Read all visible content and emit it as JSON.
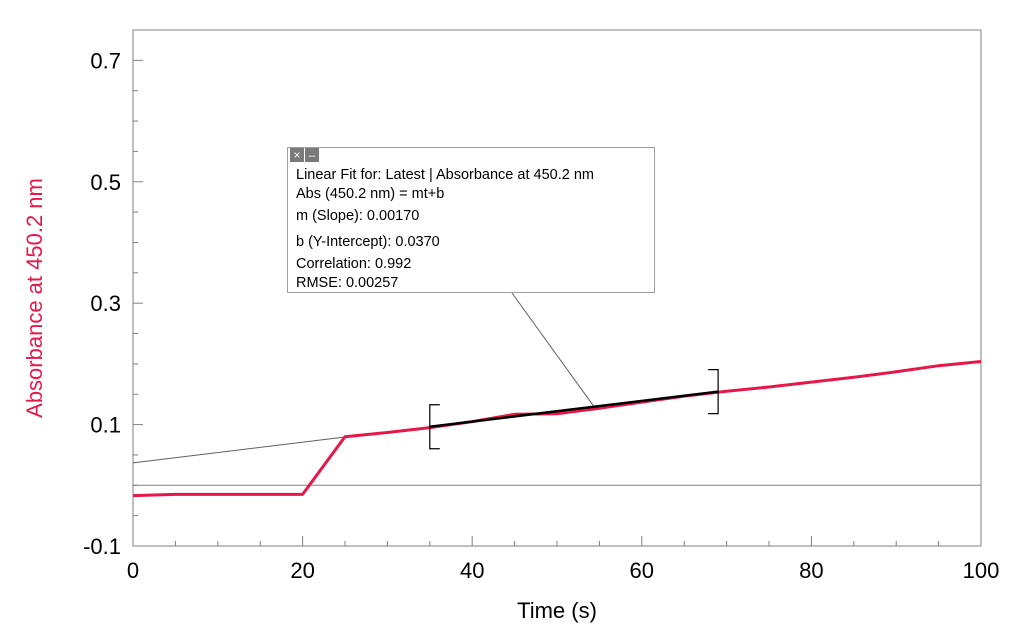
{
  "chart_data": {
    "type": "line",
    "xlabel": "Time (s)",
    "ylabel": "Absorbance at 450.2 nm",
    "xlim": [
      0,
      100
    ],
    "ylim": [
      -0.1,
      0.75
    ],
    "x_ticks": [
      0,
      20,
      40,
      60,
      80,
      100
    ],
    "y_ticks": [
      -0.1,
      0.1,
      0.3,
      0.5,
      0.7
    ],
    "x_tick_labels": [
      "0",
      "20",
      "40",
      "60",
      "80",
      "100"
    ],
    "y_tick_labels": [
      "-0.1",
      "0.1",
      "0.3",
      "0.5",
      "0.7"
    ],
    "grid": false,
    "colors": {
      "series": "#e8174a",
      "fit": "#000000",
      "ylabel": "#e8174a"
    },
    "series": [
      {
        "x": [
          0,
          5,
          10,
          15,
          20,
          25,
          30,
          35,
          40,
          45,
          50,
          55,
          60,
          65,
          70,
          75,
          80,
          85,
          90,
          95,
          100
        ],
        "y": [
          -0.017,
          -0.015,
          -0.015,
          -0.015,
          -0.015,
          0.08,
          0.087,
          0.095,
          0.105,
          0.117,
          0.118,
          0.127,
          0.137,
          0.147,
          0.155,
          0.162,
          0.17,
          0.178,
          0.187,
          0.197,
          0.204
        ]
      }
    ],
    "fit": {
      "slope": 0.0017,
      "intercept": 0.037,
      "x_range": [
        35,
        69
      ]
    },
    "fit_box": {
      "line1": "Linear Fit for: Latest | Absorbance at 450.2 nm",
      "line2": "Abs (450.2 nm) = mt+b",
      "line3": "m (Slope): 0.00170",
      "line4": "b (Y-Intercept): 0.0370",
      "line5": "Correlation: 0.992",
      "line6": "RMSE: 0.00257"
    }
  }
}
